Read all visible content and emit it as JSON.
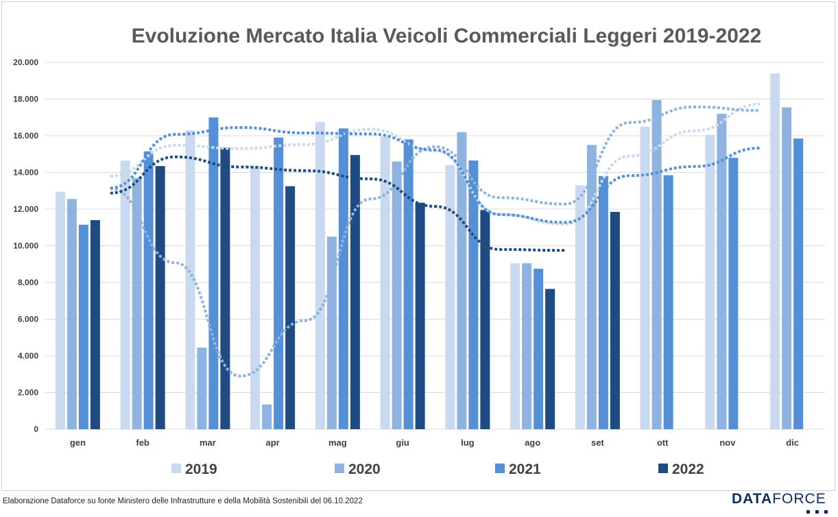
{
  "chart_data": {
    "type": "bar",
    "title": "Evoluzione Mercato Italia Veicoli Commerciali Leggeri 2019-2022",
    "categories": [
      "gen",
      "feb",
      "mar",
      "apr",
      "mag",
      "giu",
      "lug",
      "ago",
      "set",
      "ott",
      "nov",
      "dic"
    ],
    "ylim": [
      0,
      20000
    ],
    "yticks": [
      "0",
      "2.000",
      "4.000",
      "6.000",
      "8.000",
      "10.000",
      "12.000",
      "14.000",
      "16.000",
      "18.000",
      "20.000"
    ],
    "grid": true,
    "legend_position": "bottom",
    "series": [
      {
        "name": "2019",
        "color": "#c9d9ef",
        "values": [
          12950,
          14650,
          16300,
          14300,
          16750,
          15950,
          14400,
          9050,
          13300,
          16500,
          16050,
          19400
        ]
      },
      {
        "name": "2020",
        "color": "#8eb3e0",
        "values": [
          12550,
          13700,
          4450,
          1350,
          10500,
          14600,
          16200,
          9050,
          15500,
          17950,
          17200,
          17550
        ]
      },
      {
        "name": "2021",
        "color": "#5590d6",
        "values": [
          11150,
          15150,
          17000,
          15900,
          16400,
          15800,
          14650,
          8750,
          13800,
          13850,
          14800,
          15850
        ]
      },
      {
        "name": "2022",
        "color": "#1f4a82",
        "values": [
          11400,
          14350,
          15350,
          13250,
          14950,
          12350,
          11950,
          7650,
          11850,
          null,
          null,
          null
        ]
      }
    ],
    "trendlines": "dotted moving average per series"
  },
  "footer": {
    "source": "Elaborazione Dataforce su fonte Ministero delle Infrastrutture e della Mobilità Sostenibili del 06.10.2022"
  },
  "logo": {
    "part1": "DATA",
    "part2": "FORCE"
  }
}
